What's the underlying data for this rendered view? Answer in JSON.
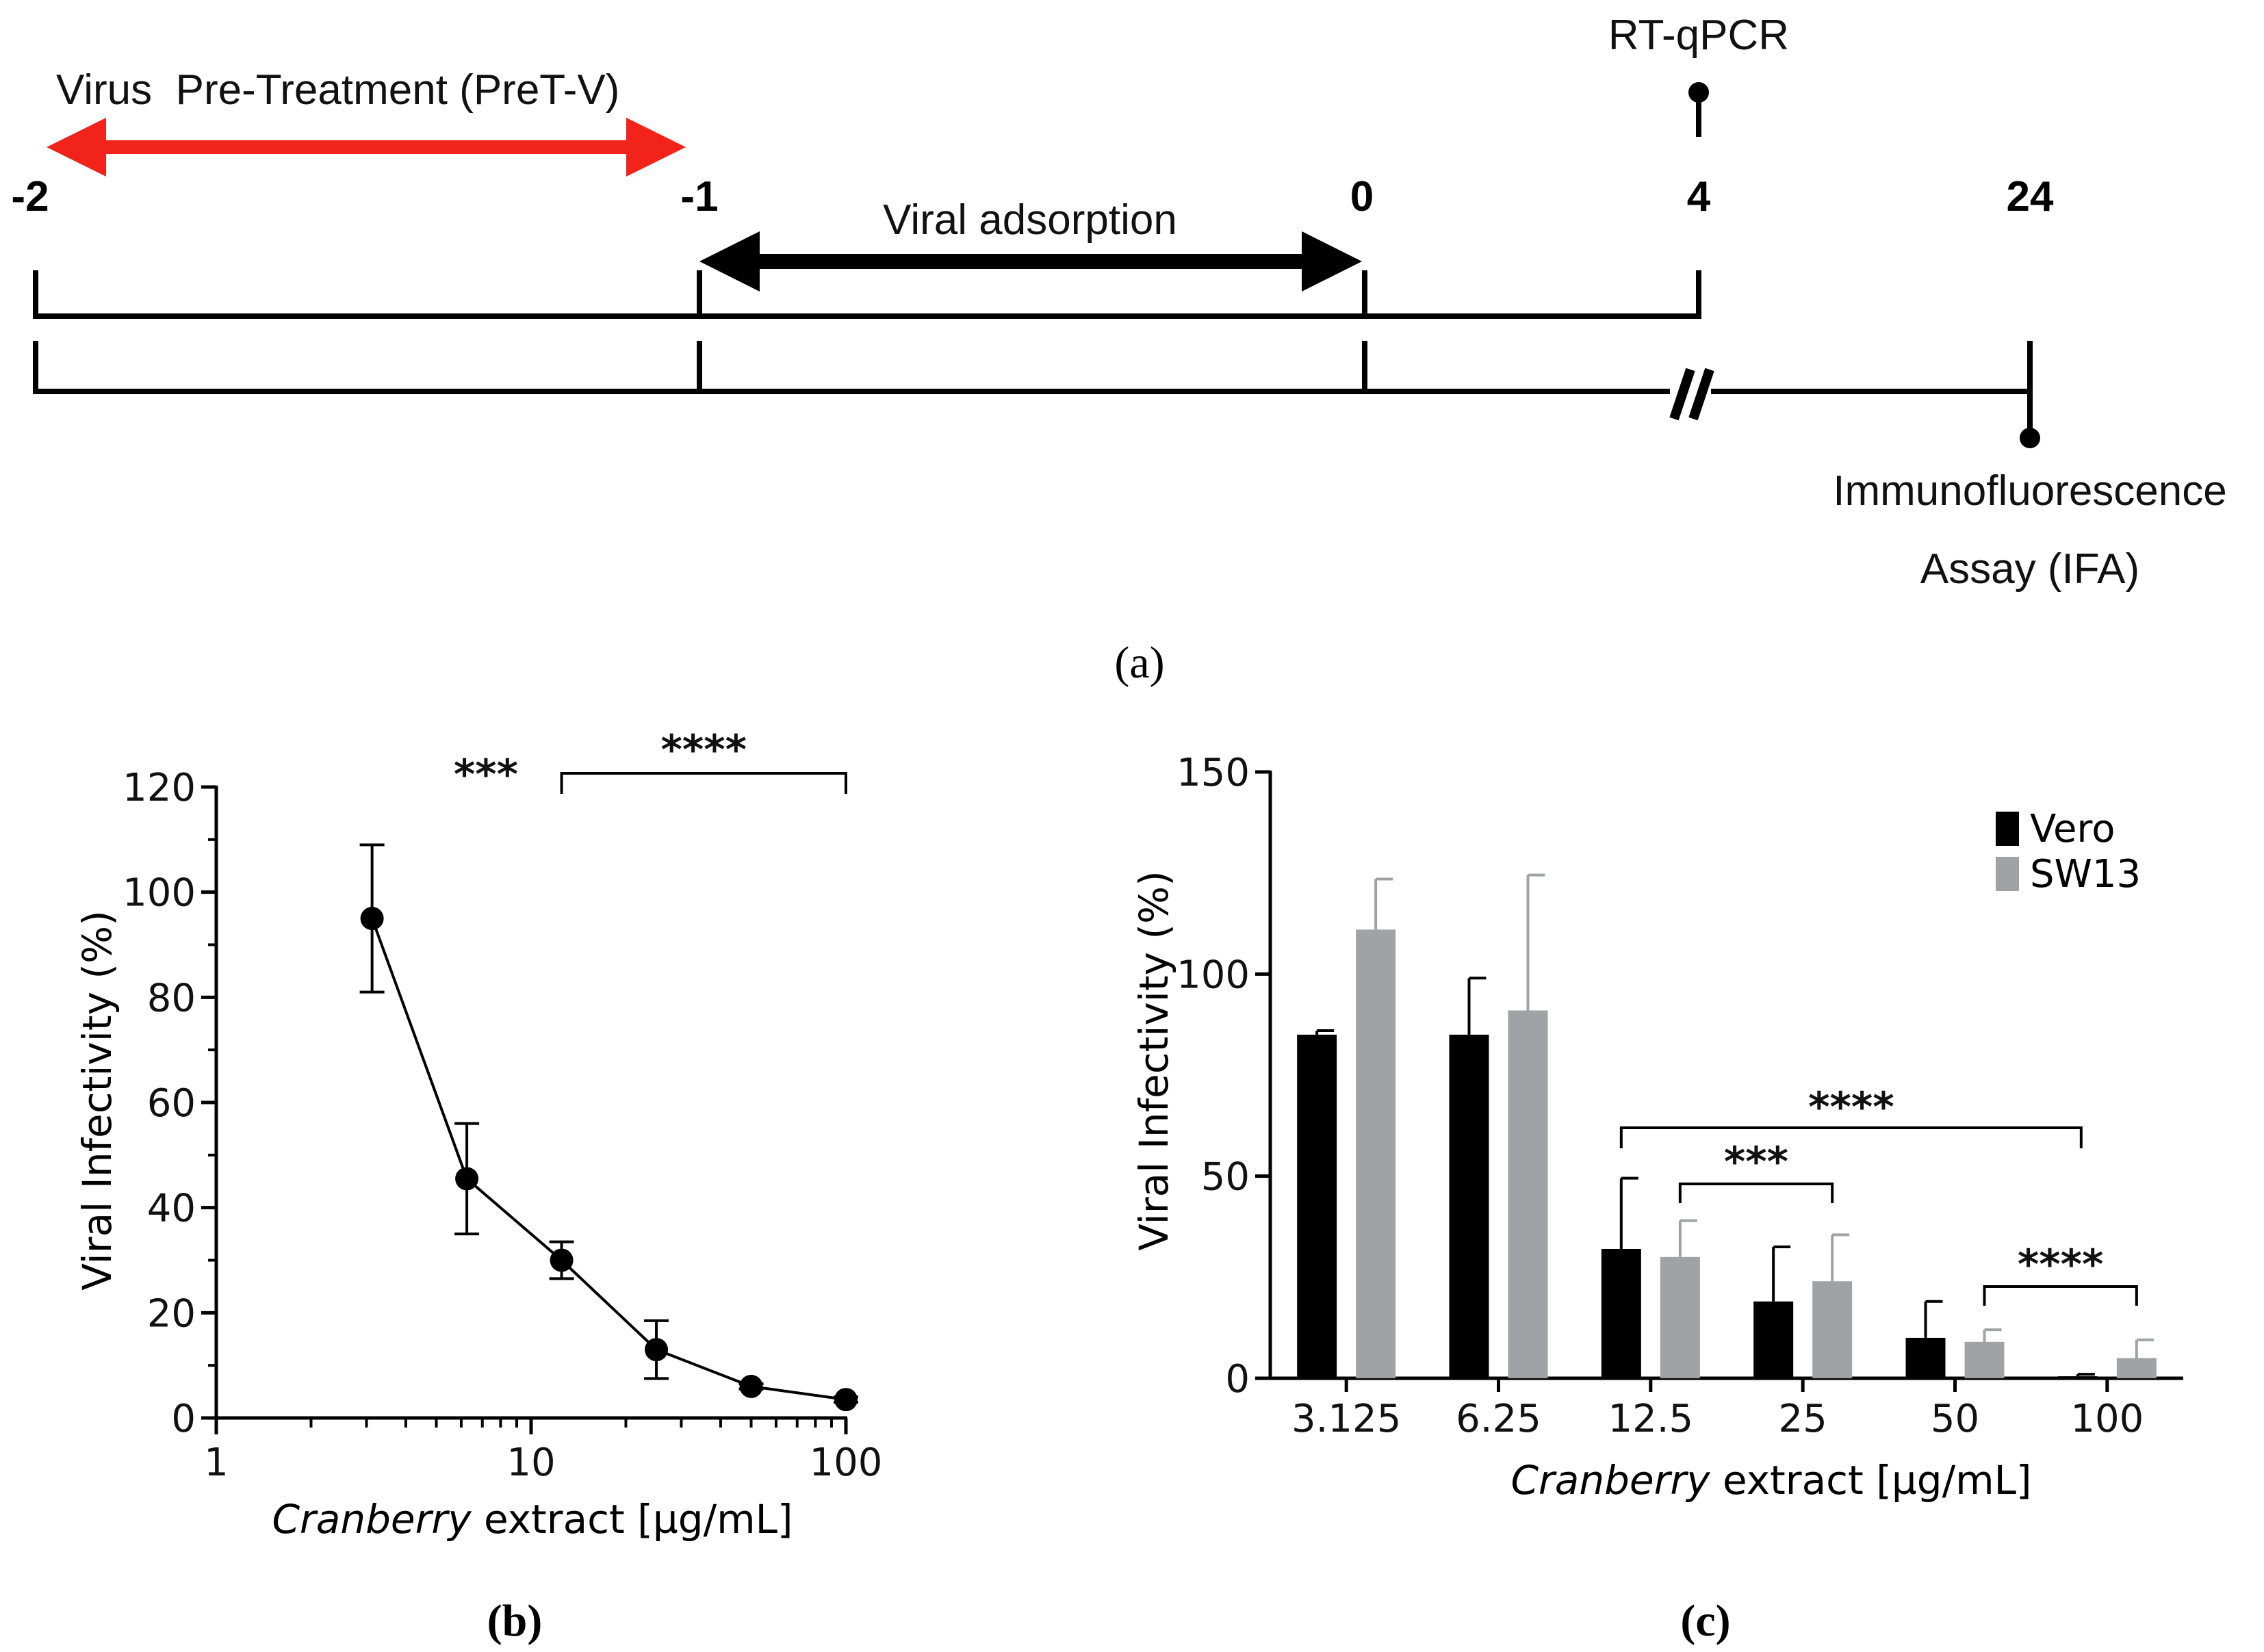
{
  "panel_a": {
    "caption": "(a)",
    "pretreatment_label": "Virus  Pre-Treatment (PreT-V)",
    "adsorption_label": "Viral adsorption",
    "rtqpcr_label": "RT-qPCR",
    "ifa_line1": "Immunofluorescence",
    "ifa_line2": "Assay (IFA)",
    "time_points": [
      {
        "label": "-2"
      },
      {
        "label": "-1"
      },
      {
        "label": "0"
      },
      {
        "label": "4"
      },
      {
        "label": "24"
      }
    ],
    "colors": {
      "pretreatment": "#f2231a",
      "adsorption": "#000000"
    }
  },
  "chart_data": [
    {
      "type": "line",
      "panel": "(b)",
      "caption": "(b)",
      "xscale": "log",
      "xlim": [
        1,
        100
      ],
      "ylim": [
        0,
        120
      ],
      "xticks": [
        "1",
        "10",
        "100"
      ],
      "yticks": [
        "0",
        "20",
        "40",
        "60",
        "80",
        "100",
        "120"
      ],
      "xlabel_italic": "Cranberry",
      "xlabel_rest": " extract [µg/mL]",
      "ylabel": "Viral Infectivity (%)",
      "x": [
        3.125,
        6.25,
        12.5,
        25,
        50,
        100
      ],
      "y": [
        95,
        45.5,
        30,
        13,
        6,
        3.5
      ],
      "err": [
        14,
        10.5,
        3.5,
        5.5,
        0.5,
        0.5
      ],
      "annotations": [
        {
          "text": "***"
        },
        {
          "text": "****",
          "from": 12.5,
          "to": 100
        }
      ]
    },
    {
      "type": "bar",
      "panel": "(c)",
      "caption": "(c)",
      "categories": [
        "3.125",
        "6.25",
        "12.5",
        "25",
        "50",
        "100"
      ],
      "series": [
        {
          "name": "Vero",
          "color": "#000000",
          "values": [
            85,
            85,
            32,
            19,
            10,
            0.5
          ],
          "err": [
            1,
            14,
            17.5,
            13.5,
            9,
            0.5
          ]
        },
        {
          "name": "SW13",
          "color": "#a0a2a5",
          "values": [
            111,
            91,
            30,
            24,
            9,
            5
          ],
          "err": [
            12.5,
            33.5,
            9,
            11.5,
            3,
            4.5
          ]
        }
      ],
      "ylim": [
        0,
        150
      ],
      "yticks": [
        "0",
        "50",
        "100",
        "150"
      ],
      "xlabel_italic": "Cranberry",
      "xlabel_rest": " extract [µg/mL]",
      "ylabel": "Viral Infectivity (%)",
      "legend_position": "top-right",
      "annotations": [
        {
          "text": "****",
          "from": "12.5",
          "to": "100"
        },
        {
          "text": "***",
          "from": "12.5",
          "to": "25"
        },
        {
          "text": "****",
          "from": "50",
          "to": "100"
        }
      ]
    }
  ]
}
